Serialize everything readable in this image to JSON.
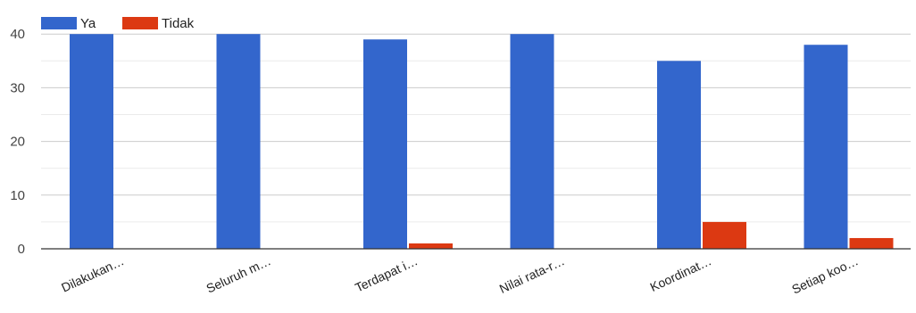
{
  "chart_data": {
    "type": "bar",
    "categories": [
      "Dilakukan…",
      "Seluruh m…",
      "Terdapat i…",
      "Nilai rata-r…",
      "Koordinat…",
      "Setiap koo…"
    ],
    "series": [
      {
        "name": "Ya",
        "color": "#3366cc",
        "values": [
          40,
          40,
          39,
          40,
          35,
          38
        ]
      },
      {
        "name": "Tidak",
        "color": "#dc3912",
        "values": [
          0,
          0,
          1,
          0,
          5,
          2
        ]
      }
    ],
    "y_ticks": [
      0,
      10,
      20,
      30,
      40
    ],
    "ylim": [
      0,
      43
    ],
    "grid": true,
    "legend_position": "top-left"
  }
}
